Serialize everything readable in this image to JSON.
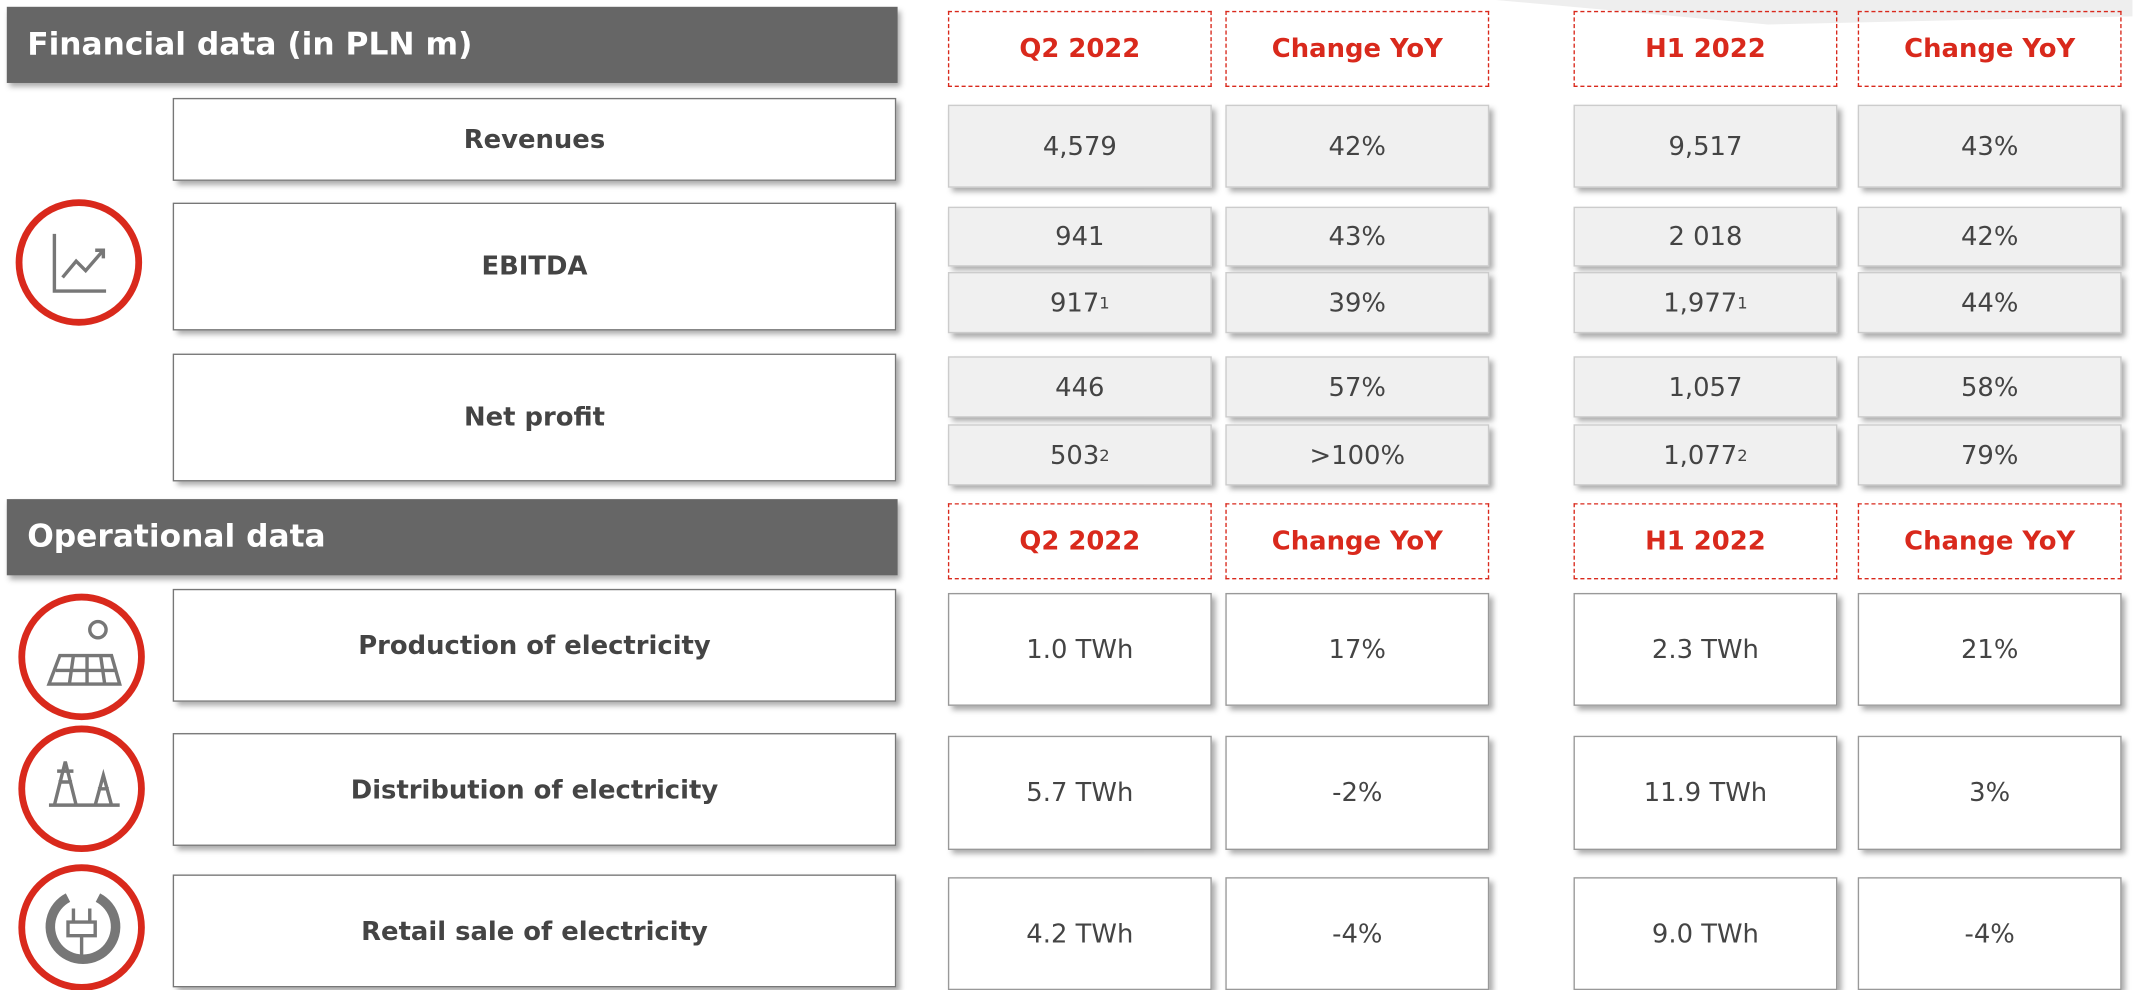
{
  "financial": {
    "title": "Financial data (in PLN m)",
    "columns": [
      "Q2 2022",
      "Change YoY",
      "H1 2022",
      "Change YoY"
    ],
    "rows": [
      {
        "label": "Revenues",
        "lines": [
          [
            "4,579",
            "42%",
            "9,517",
            "43%"
          ]
        ]
      },
      {
        "label": "EBITDA",
        "lines": [
          [
            "941",
            "43%",
            "2 018",
            "42%"
          ],
          [
            {
              "text": "917",
              "note": "1"
            },
            "39%",
            {
              "text": "1,977",
              "note": "1"
            },
            "44%"
          ]
        ]
      },
      {
        "label": "Net profit",
        "lines": [
          [
            "446",
            "57%",
            "1,057",
            "58%"
          ],
          [
            {
              "text": "503",
              "note": "2"
            },
            ">100%",
            {
              "text": "1,077",
              "note": "2"
            },
            "79%"
          ]
        ]
      }
    ]
  },
  "operational": {
    "title": "Operational data",
    "columns": [
      "Q2 2022",
      "Change YoY",
      "H1 2022",
      "Change YoY"
    ],
    "rows": [
      {
        "label": "Production of electricity",
        "lines": [
          [
            "1.0 TWh",
            "17%",
            "2.3 TWh",
            "21%"
          ]
        ]
      },
      {
        "label": "Distribution of electricity",
        "lines": [
          [
            "5.7 TWh",
            "-2%",
            "11.9 TWh",
            "3%"
          ]
        ]
      },
      {
        "label": "Retail sale of electricity",
        "lines": [
          [
            "4.2 TWh",
            "-4%",
            "9.0 TWh",
            "-4%"
          ]
        ]
      }
    ]
  }
}
